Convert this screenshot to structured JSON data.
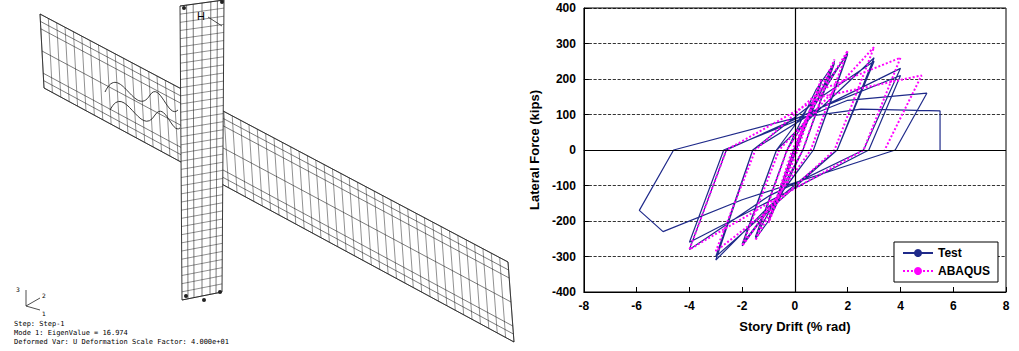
{
  "chart_data": {
    "type": "line",
    "xlabel": "Story Drift (% rad)",
    "ylabel": "Lateral Force (kips)",
    "xlim": [
      -8,
      8
    ],
    "xticks": [
      -8,
      -6,
      -4,
      -2,
      0,
      2,
      4,
      6,
      8
    ],
    "ylim": [
      -400,
      400
    ],
    "yticks": [
      -400,
      -300,
      -200,
      -100,
      0,
      100,
      200,
      300,
      400
    ],
    "grid": "y",
    "legend": "lower right",
    "series": [
      {
        "name": "Test",
        "color": "#1f2a8a",
        "line_style": "solid",
        "x": [
          0,
          0.375,
          -0.375,
          0.375,
          -0.375,
          0.5,
          -0.5,
          0.5,
          -0.5,
          0.75,
          -0.75,
          0.75,
          -0.75,
          1.0,
          0.05,
          -1.0,
          -0.05,
          1.0,
          0.05,
          -1.0,
          0,
          1.5,
          0.3,
          -1.0,
          -1.5,
          -0.3,
          0.8,
          1.5,
          0.3,
          -1.5,
          -0.3,
          2.0,
          0.7,
          -1.0,
          -2.0,
          -0.7,
          1.0,
          2.0,
          0.7,
          -2.0,
          -0.7,
          3.0,
          1.6,
          -1.0,
          -3.0,
          -1.6,
          1.0,
          3.0,
          1.6,
          -3.0,
          -1.6,
          1.0,
          4.0,
          2.6,
          -1.0,
          -4.0,
          -2.6,
          1.0,
          4.0,
          2.8,
          -4.0,
          -2.7,
          2.0,
          5.0,
          3.8,
          -2.0,
          -5.0,
          -5.9,
          -4.6,
          0,
          2.5,
          5.5,
          5.5
        ],
        "values": [
          0,
          75,
          -75,
          75,
          -75,
          100,
          -100,
          100,
          -100,
          150,
          -150,
          150,
          -150,
          195,
          0,
          -200,
          0,
          190,
          0,
          -195,
          0,
          250,
          0,
          -200,
          -250,
          0,
          170,
          245,
          0,
          -245,
          0,
          275,
          0,
          -170,
          -270,
          0,
          170,
          270,
          0,
          -265,
          0,
          260,
          0,
          -160,
          -310,
          0,
          150,
          250,
          0,
          -300,
          0,
          120,
          230,
          0,
          -130,
          -280,
          0,
          120,
          210,
          0,
          -260,
          0,
          140,
          160,
          0,
          -140,
          -230,
          -170,
          0,
          90,
          115,
          110,
          0
        ]
      },
      {
        "name": "ABAQUS",
        "color": "#ff00ff",
        "line_style": "dotted",
        "x": [
          0,
          0.5,
          -0.5,
          1.0,
          0.1,
          -1.0,
          -0.1,
          1.5,
          0.3,
          -1.5,
          -0.3,
          2.0,
          0.6,
          -2.0,
          -0.6,
          3.0,
          1.5,
          -1.0,
          -3.0,
          -1.5,
          1.0,
          4.0,
          2.6,
          -1.0,
          -4.0,
          -2.6,
          1.0,
          4.8,
          3.4
        ],
        "values": [
          0,
          100,
          -100,
          200,
          0,
          -205,
          0,
          255,
          0,
          -255,
          0,
          280,
          0,
          -270,
          0,
          290,
          0,
          -170,
          -285,
          0,
          170,
          260,
          0,
          -150,
          -280,
          0,
          150,
          210,
          0
        ]
      }
    ]
  },
  "fe_model": {
    "marker_label": "H",
    "axes": [
      "1",
      "2",
      "3"
    ],
    "caption": [
      "Step: Step-1",
      "Mode  1: EigenValue =  16.974",
      "Deformed Var: U   Deformation Scale Factor: 4.000e+01"
    ]
  }
}
